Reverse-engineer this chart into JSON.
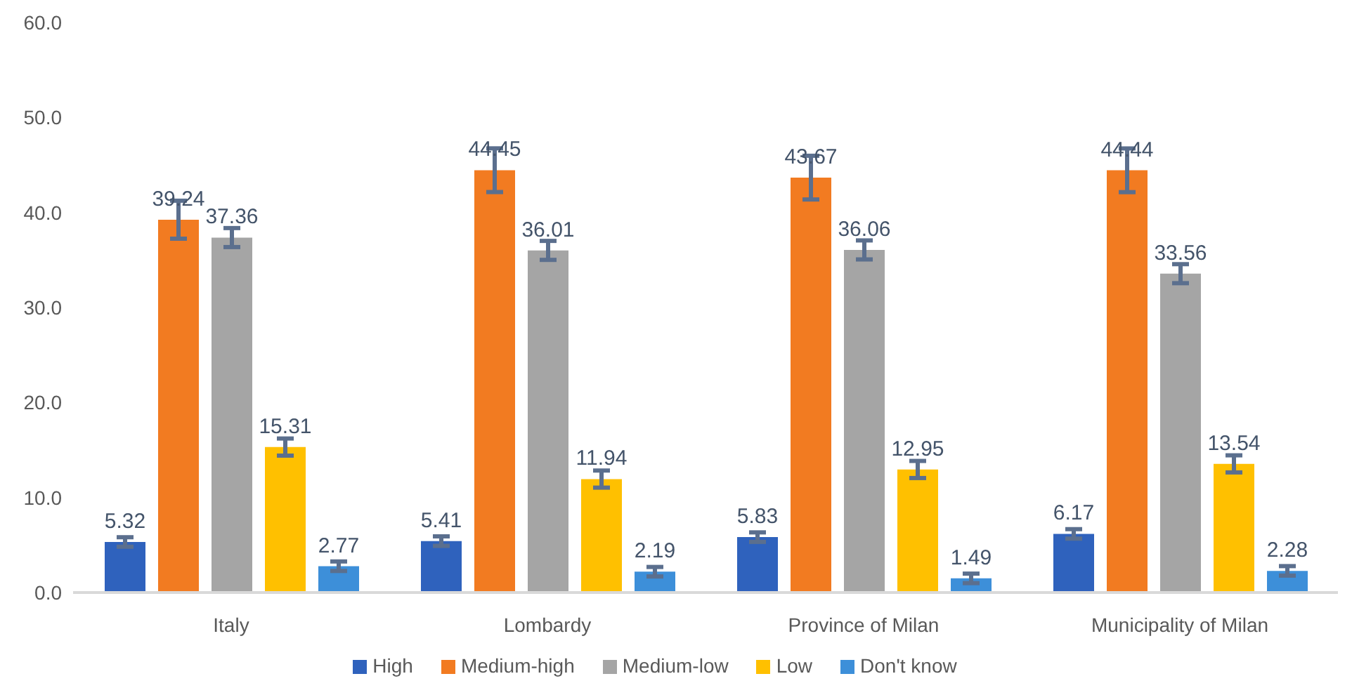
{
  "chart_data": {
    "type": "bar",
    "categories": [
      "Italy",
      "Lombardy",
      "Province of Milan",
      "Municipality of Milan"
    ],
    "series": [
      {
        "name": "High",
        "color": "#2f62bd",
        "values": [
          5.32,
          5.41,
          5.83,
          6.17
        ],
        "errors": [
          0.5,
          0.5,
          0.5,
          0.5
        ]
      },
      {
        "name": "Medium-high",
        "color": "#f27b21",
        "values": [
          39.24,
          44.45,
          43.67,
          44.44
        ],
        "errors": [
          2.0,
          2.3,
          2.3,
          2.3
        ]
      },
      {
        "name": "Medium-low",
        "color": "#a5a5a5",
        "values": [
          37.36,
          36.01,
          36.06,
          33.56
        ],
        "errors": [
          1.0,
          1.0,
          1.0,
          1.0
        ]
      },
      {
        "name": "Low",
        "color": "#ffc000",
        "values": [
          15.31,
          11.94,
          12.95,
          13.54
        ],
        "errors": [
          0.9,
          0.9,
          0.9,
          0.9
        ]
      },
      {
        "name": "Don't know",
        "color": "#3d8fd9",
        "values": [
          2.77,
          2.19,
          1.49,
          2.28
        ],
        "errors": [
          0.5,
          0.5,
          0.5,
          0.5
        ]
      }
    ],
    "ylim": [
      0,
      60
    ],
    "yticks": [
      {
        "value": 0,
        "label": "0.0"
      },
      {
        "value": 10,
        "label": "10.0"
      },
      {
        "value": 20,
        "label": "20.0"
      },
      {
        "value": 30,
        "label": "30.0"
      },
      {
        "value": 40,
        "label": "40.0"
      },
      {
        "value": 50,
        "label": "50.0"
      },
      {
        "value": 60,
        "label": "60.0"
      }
    ],
    "grid": false,
    "legend": "bottom",
    "data_labels": true
  }
}
